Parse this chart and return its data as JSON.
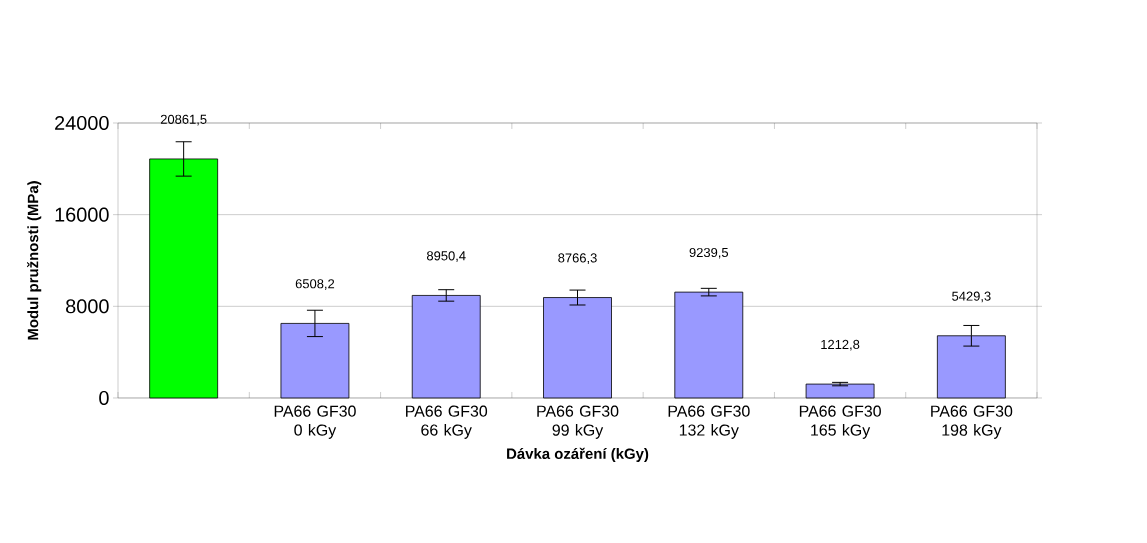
{
  "chart_data": {
    "type": "bar",
    "xlabel": "Dávka ozáření (kGy)",
    "ylabel": "Modul pružnosti  (MPa)",
    "categories": [
      null,
      "PA66 GF30 0 kGy",
      "PA66 GF30 66 kGy",
      "PA66 GF30 99 kGy",
      "PA66 GF30 132 kGy",
      "PA66 GF30 165 kGy",
      "PA66 GF30 198 kGy"
    ],
    "values": [
      20861.5,
      6508.2,
      8950.4,
      8766.3,
      9239.5,
      1212.8,
      5429.3
    ],
    "errors": [
      1500,
      1150,
      500,
      650,
      330,
      150,
      900
    ],
    "colors": [
      "#00ff00",
      "#9999ff",
      "#9999ff",
      "#9999ff",
      "#9999ff",
      "#9999ff",
      "#9999ff"
    ],
    "value_labels": [
      "20861,5",
      "6508,2",
      "8950,4",
      "8766,3",
      "9239,5",
      "1212,8",
      "5429,3"
    ],
    "ylim": [
      0,
      24000
    ],
    "yticks": [
      0,
      8000,
      16000,
      24000
    ],
    "grid": "y"
  }
}
